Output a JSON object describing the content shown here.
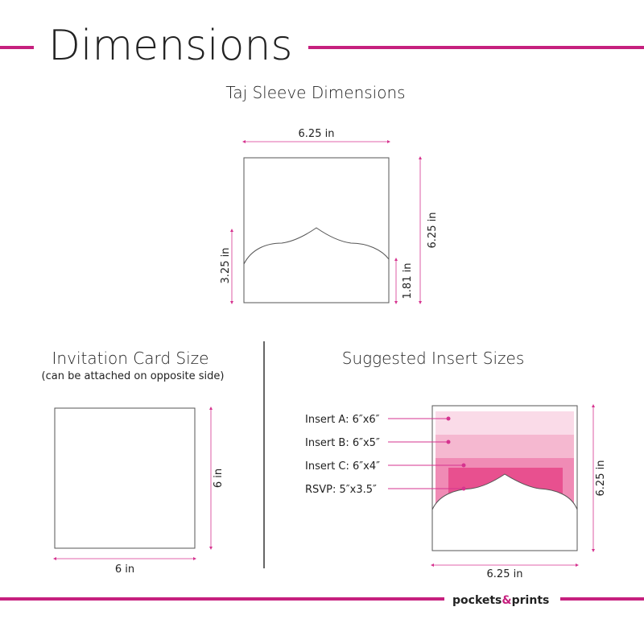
{
  "header": {
    "title": "Dimensions"
  },
  "sleeve": {
    "title": "Taj Sleeve Dimensions",
    "width": "6.25 in",
    "height": "6.25 in",
    "flap_left": "3.25 in",
    "flap_right": "1.81 in"
  },
  "card": {
    "title": "Invitation Card Size",
    "note": "(can be attached on opposite side)",
    "height": "6 in",
    "width": "6 in"
  },
  "inserts": {
    "title": "Suggested Insert Sizes",
    "items": [
      "Insert A: 6″x6″",
      "Insert B: 6″x5″",
      "Insert C: 6″x4″",
      "RSVP: 5″x3.5″"
    ],
    "height": "6.25 in",
    "width": "6.25 in"
  },
  "footer": {
    "brand": [
      "pockets",
      "&",
      "prints"
    ]
  }
}
